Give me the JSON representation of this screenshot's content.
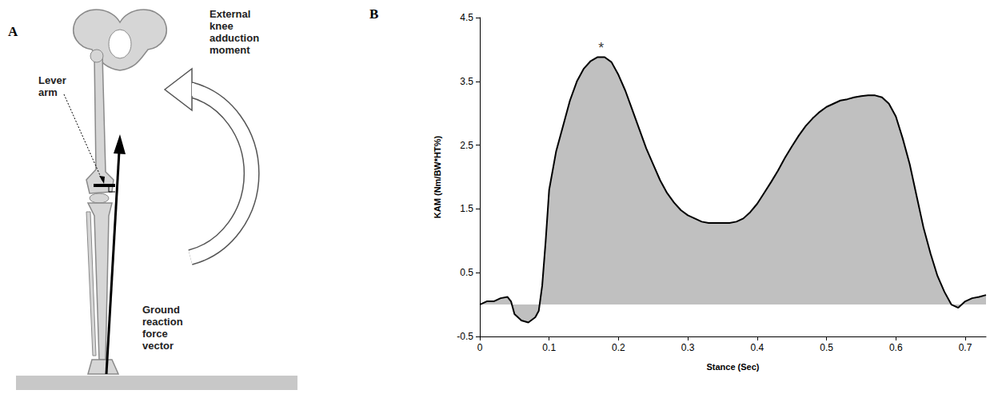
{
  "panel_letters": {
    "diagram": "A",
    "chart": "B"
  },
  "diagram": {
    "labels": {
      "moment": "External knee adduction moment",
      "lever": "Lever arm",
      "force": "Ground reaction force vector"
    }
  },
  "chart_data": {
    "type": "line",
    "x": [
      0,
      0.01,
      0.02,
      0.03,
      0.04,
      0.045,
      0.05,
      0.06,
      0.07,
      0.08,
      0.085,
      0.09,
      0.095,
      0.1,
      0.11,
      0.12,
      0.13,
      0.14,
      0.15,
      0.16,
      0.17,
      0.18,
      0.19,
      0.2,
      0.21,
      0.22,
      0.23,
      0.24,
      0.25,
      0.26,
      0.27,
      0.28,
      0.29,
      0.3,
      0.31,
      0.32,
      0.33,
      0.34,
      0.35,
      0.36,
      0.37,
      0.38,
      0.39,
      0.4,
      0.41,
      0.42,
      0.43,
      0.44,
      0.45,
      0.46,
      0.47,
      0.48,
      0.49,
      0.5,
      0.51,
      0.52,
      0.53,
      0.54,
      0.55,
      0.56,
      0.57,
      0.58,
      0.59,
      0.6,
      0.61,
      0.62,
      0.63,
      0.64,
      0.65,
      0.66,
      0.67,
      0.68,
      0.69,
      0.7,
      0.71,
      0.72,
      0.73
    ],
    "values": [
      0,
      0.05,
      0.05,
      0.1,
      0.12,
      0.05,
      -0.15,
      -0.25,
      -0.28,
      -0.2,
      -0.1,
      0.3,
      1.0,
      1.8,
      2.4,
      2.8,
      3.2,
      3.5,
      3.7,
      3.82,
      3.88,
      3.88,
      3.8,
      3.6,
      3.35,
      3.05,
      2.75,
      2.45,
      2.2,
      1.95,
      1.75,
      1.6,
      1.48,
      1.4,
      1.35,
      1.3,
      1.28,
      1.28,
      1.28,
      1.28,
      1.3,
      1.35,
      1.45,
      1.58,
      1.75,
      1.92,
      2.1,
      2.3,
      2.48,
      2.65,
      2.8,
      2.92,
      3.02,
      3.1,
      3.15,
      3.2,
      3.22,
      3.25,
      3.27,
      3.28,
      3.28,
      3.25,
      3.15,
      2.95,
      2.6,
      2.2,
      1.7,
      1.2,
      0.8,
      0.45,
      0.2,
      0.0,
      -0.05,
      0.05,
      0.1,
      0.12,
      0.15
    ],
    "color": "#c0c0c0",
    "xlabel": "Stance (Sec)",
    "ylabel": "KAM (Nm/BW*HT%)",
    "xlim": [
      0,
      0.73
    ],
    "xticks": [
      0,
      0.1,
      0.2,
      0.3,
      0.4,
      0.5,
      0.6,
      0.7
    ],
    "ylim": [
      -0.5,
      4.5
    ],
    "yticks": [
      -0.5,
      0.5,
      1.5,
      2.5,
      3.5,
      4.5
    ],
    "grid": false,
    "annotations": [
      {
        "x": 0.175,
        "y": 4.02,
        "text": "*"
      }
    ]
  }
}
